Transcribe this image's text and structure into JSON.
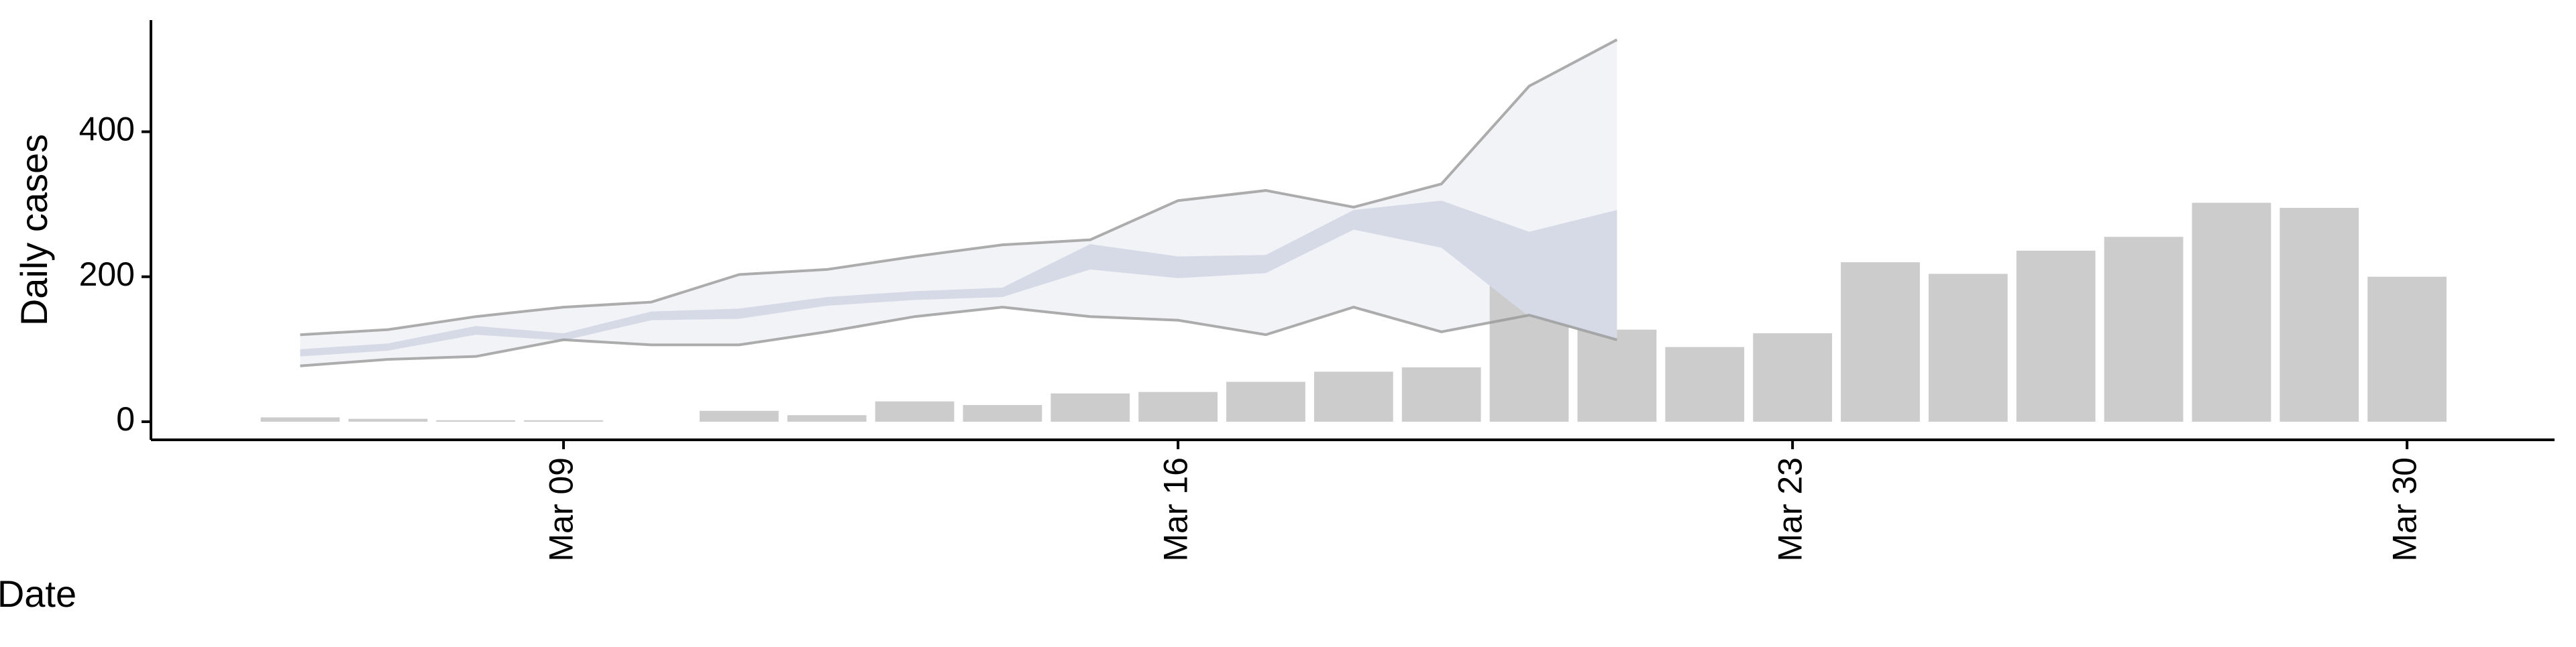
{
  "chart_data": {
    "type": "bar",
    "x_label": "Date",
    "y_label": "Daily cases",
    "x": [
      6,
      7,
      8,
      9,
      10,
      11,
      12,
      13,
      14,
      15,
      16,
      17,
      18,
      19,
      20,
      21,
      22,
      23,
      24,
      25,
      26,
      27,
      28,
      29,
      30
    ],
    "values": [
      6,
      4,
      2,
      2,
      0,
      15,
      9,
      28,
      23,
      39,
      41,
      55,
      69,
      75,
      190,
      127,
      103,
      122,
      220,
      204,
      236,
      255,
      302,
      295,
      200
    ],
    "color": "#cccccc",
    "outer": {
      "x": [
        6,
        7,
        8,
        9,
        10,
        11,
        12,
        13,
        14,
        15,
        16,
        17,
        18,
        19,
        20,
        21
      ],
      "lower": [
        77,
        86,
        90,
        113,
        106,
        106,
        124,
        145,
        158,
        145,
        140,
        120,
        158,
        124,
        147,
        113
      ],
      "upper": [
        120,
        127,
        145,
        158,
        165,
        203,
        210,
        228,
        244,
        251,
        305,
        319,
        296,
        328,
        463,
        527
      ],
      "color": "#f2f3f7",
      "line_color": "#999999"
    },
    "inner": {
      "x": [
        6,
        7,
        8,
        9,
        10,
        11,
        12,
        13,
        14,
        15,
        16,
        17,
        18,
        19,
        20,
        21
      ],
      "lower": [
        90,
        98,
        120,
        112,
        140,
        142,
        160,
        168,
        172,
        210,
        198,
        205,
        265,
        240,
        145,
        112
      ],
      "upper": [
        100,
        108,
        132,
        122,
        152,
        156,
        172,
        180,
        185,
        245,
        228,
        230,
        292,
        305,
        262,
        292
      ],
      "color": "#d5dae6"
    },
    "xlim": [
      4.3,
      31.68
    ],
    "ylim": [
      -25,
      554
    ],
    "xticks": [
      {
        "value": 9,
        "label": "Mar 09"
      },
      {
        "value": 16,
        "label": "Mar 16"
      },
      {
        "value": 23,
        "label": "Mar 23"
      },
      {
        "value": 30,
        "label": "Mar 30"
      }
    ],
    "yticks": [
      0,
      200,
      400
    ]
  }
}
